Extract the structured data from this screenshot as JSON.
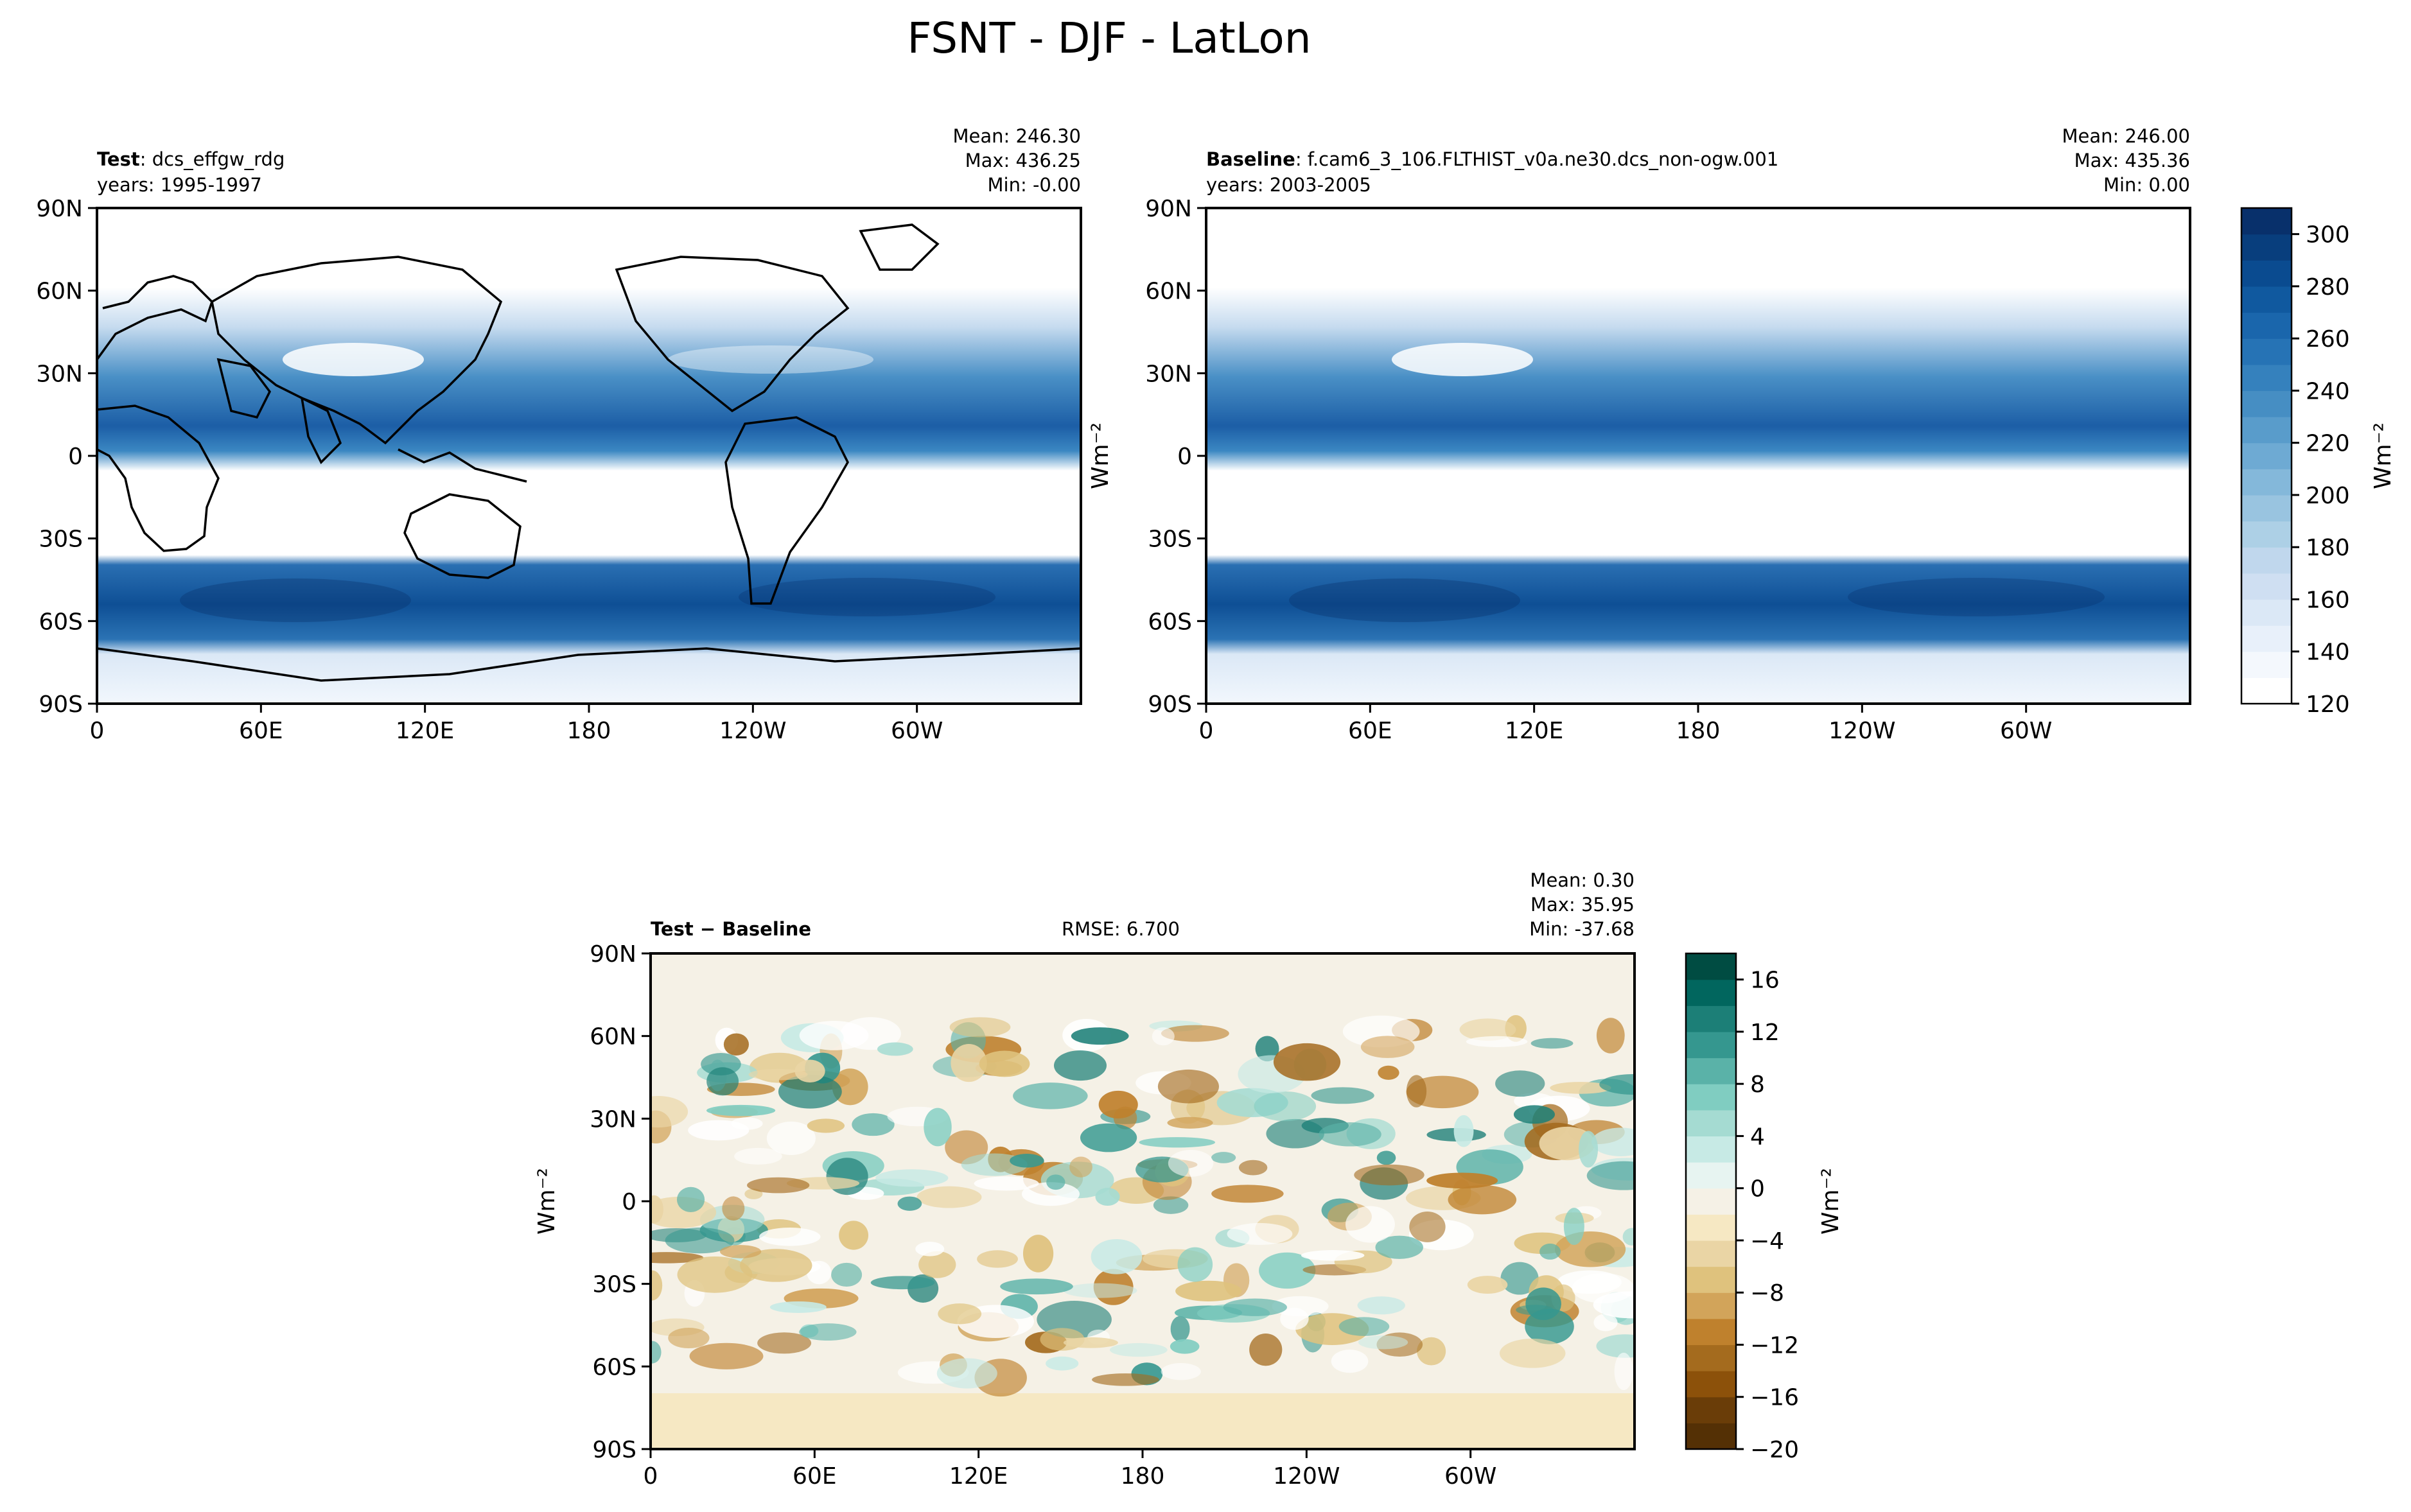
{
  "figure": {
    "title": "FSNT - DJF - LatLon"
  },
  "chart_data": [
    {
      "type": "heatmap",
      "panel": "test",
      "label_bold": "Test",
      "label_rest": ": dcs_effgw_rdg",
      "years": "years: 1995-1997",
      "stats": {
        "mean": "Mean: 246.30",
        "max": "Max: 436.25",
        "min": "Min: -0.00"
      },
      "units": "Wm⁻²",
      "xlabels": [
        "0",
        "60E",
        "120E",
        "180",
        "120W",
        "60W"
      ],
      "ylabels": [
        "90N",
        "60N",
        "30N",
        "0",
        "30S",
        "60S",
        "90S"
      ],
      "xlim": [
        0,
        360
      ],
      "ylim": [
        -90,
        90
      ],
      "colormap": "Blues",
      "value_range": [
        120,
        310
      ]
    },
    {
      "type": "heatmap",
      "panel": "baseline",
      "label_bold": "Baseline",
      "label_rest": ": f.cam6_3_106.FLTHIST_v0a.ne30.dcs_non-ogw.001",
      "years": "years: 2003-2005",
      "stats": {
        "mean": "Mean: 246.00",
        "max": "Max: 435.36",
        "min": "Min:  0.00"
      },
      "units": "Wm⁻²",
      "xlabels": [
        "0",
        "60E",
        "120E",
        "180",
        "120W",
        "60W"
      ],
      "ylabels": [
        "90N",
        "60N",
        "30N",
        "0",
        "30S",
        "60S",
        "90S"
      ],
      "xlim": [
        0,
        360
      ],
      "ylim": [
        -90,
        90
      ],
      "colormap": "Blues",
      "value_range": [
        120,
        310
      ],
      "colorbar": {
        "ticks": [
          120,
          140,
          160,
          180,
          200,
          220,
          240,
          260,
          280,
          300
        ],
        "tick_labels": [
          "120",
          "140",
          "160",
          "180",
          "200",
          "220",
          "240",
          "260",
          "280",
          "300"
        ],
        "label": "Wm⁻²",
        "colors": [
          "#ffffff",
          "#f4f8fd",
          "#e8f0fa",
          "#dbe8f6",
          "#cfdff2",
          "#c0d7ed",
          "#add0e6",
          "#99c4e0",
          "#84b8da",
          "#6eaad3",
          "#599ccb",
          "#468ec3",
          "#3581bd",
          "#2673b5",
          "#1a66ac",
          "#10599f",
          "#0a4b90",
          "#083e7d",
          "#08306b"
        ]
      }
    },
    {
      "type": "heatmap",
      "panel": "diff",
      "label": "Test − Baseline",
      "rmse": "RMSE: 6.700",
      "stats": {
        "mean": "Mean:  0.30",
        "max": "Max: 35.95",
        "min": "Min: -37.68"
      },
      "units": "Wm⁻²",
      "xlabels": [
        "0",
        "60E",
        "120E",
        "180",
        "120W",
        "60W"
      ],
      "ylabels": [
        "90N",
        "60N",
        "30N",
        "0",
        "30S",
        "60S",
        "90S"
      ],
      "xlim": [
        0,
        360
      ],
      "ylim": [
        -90,
        90
      ],
      "colormap": "BrBG",
      "value_range": [
        -20,
        18
      ],
      "colorbar": {
        "ticks": [
          -20,
          -16,
          -12,
          -8,
          -4,
          0,
          4,
          8,
          12,
          16
        ],
        "tick_labels": [
          "−20",
          "−16",
          "−12",
          "−8",
          "−4",
          "0",
          "4",
          "8",
          "12",
          "16"
        ],
        "label": "Wm⁻²",
        "colors": [
          "#543005",
          "#6a3d08",
          "#8c510a",
          "#a46b1e",
          "#bf812d",
          "#d2a45a",
          "#dfc27d",
          "#ead5a5",
          "#f6e8c3",
          "#f5f1e6",
          "#e7f4f1",
          "#c7eae5",
          "#a5dbd2",
          "#80cdc1",
          "#5ab2a8",
          "#35978f",
          "#1c7f77",
          "#01665e",
          "#004c42"
        ]
      }
    }
  ],
  "palette": {
    "land_outline": "#000000",
    "blues_low": "#ffffff",
    "blues_high": "#08306b",
    "brbg_neg": "#8c510a",
    "brbg_pos": "#01665e"
  }
}
